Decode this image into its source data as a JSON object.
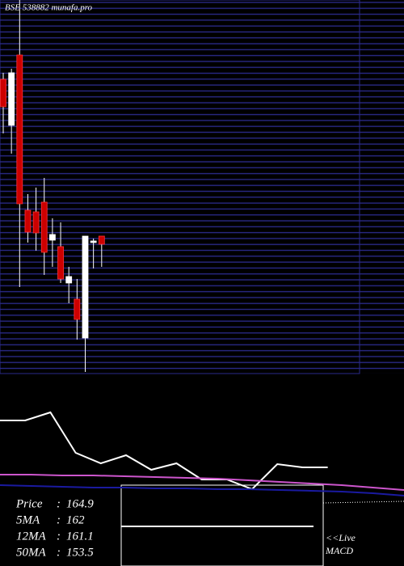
{
  "chart_data": [
    {
      "type": "candlestick",
      "title": "BSE 538882 munafa.pro",
      "ylim": [
        148,
        194
      ],
      "up_color": "#ffffff",
      "down_color": "#cc0000",
      "open": [
        184.2,
        178.5,
        187.2,
        168.0,
        167.8,
        169.0,
        164.3,
        163.5,
        159.0,
        157.0,
        152.2,
        164.0,
        164.8
      ],
      "close": [
        180.8,
        185.0,
        168.8,
        165.3,
        165.2,
        162.8,
        165.0,
        159.5,
        159.8,
        154.5,
        164.8,
        164.2,
        163.8
      ],
      "high": [
        185.0,
        185.5,
        194.0,
        170.0,
        170.8,
        172.0,
        167.0,
        166.5,
        161.0,
        159.5,
        164.8,
        164.5,
        164.8
      ],
      "low": [
        177.5,
        175.0,
        158.5,
        164.0,
        163.0,
        160.0,
        161.0,
        159.0,
        156.5,
        152.0,
        148.0,
        160.8,
        161.0
      ]
    },
    {
      "type": "line",
      "ylim": [
        0,
        200
      ],
      "series": [
        {
          "color": "#ffffff",
          "values": [
            180,
            180,
            190,
            140,
            127,
            137,
            119,
            127,
            107,
            107,
            95,
            126,
            122,
            122
          ]
        },
        {
          "color": "#cc55cc",
          "values": [
            113,
            113,
            112,
            112,
            111,
            110,
            109,
            108,
            106,
            104,
            102,
            100,
            97,
            94
          ]
        },
        {
          "color": "#1a1aa0",
          "values": [
            100,
            99,
            98,
            97,
            97,
            96,
            96,
            95,
            95,
            94,
            93,
            92,
            90,
            87
          ]
        }
      ]
    }
  ],
  "info": [
    {
      "label": "Price",
      "value": 164.9
    },
    {
      "label": "5MA",
      "value": 162
    },
    {
      "label": "12MA",
      "value": 161.1
    },
    {
      "label": "50MA",
      "value": 153.5
    }
  ],
  "macd_label": [
    "<<Live",
    "MACD"
  ]
}
